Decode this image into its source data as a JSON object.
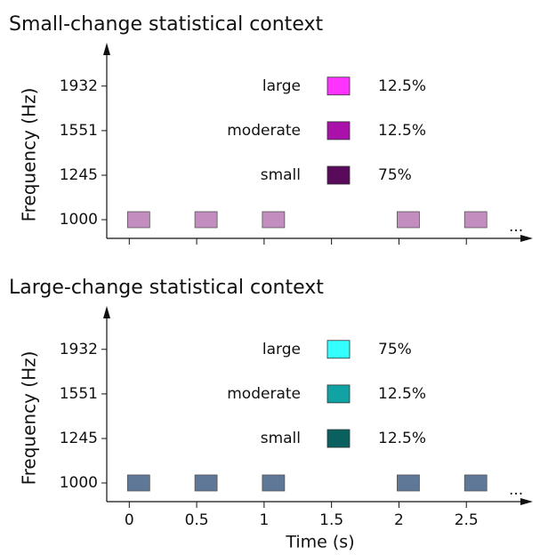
{
  "chart_data": [
    {
      "type": "scatter",
      "title": "Small-change statistical context",
      "ylabel": "Frequency (Hz)",
      "yscale": "log",
      "ylim": [
        912,
        2270
      ],
      "yticks": [
        1000,
        1245,
        1551,
        1932
      ],
      "xlim": [
        -0.167,
        2.967
      ],
      "xticks": [
        0,
        0.5,
        1,
        1.5,
        2,
        2.5
      ],
      "xtick_labels_shown": false,
      "x": [
        0,
        0.5,
        1,
        2,
        2.5
      ],
      "values": [
        1000,
        1000,
        1000,
        1000,
        1000
      ],
      "color": "#c48dbf",
      "annotation": "...",
      "series": [
        {
          "name": "large",
          "color": "#ff33ff",
          "values": [
            12.5
          ],
          "value_labels": [
            "12.5%"
          ]
        },
        {
          "name": "moderate",
          "color": "#aa10aa",
          "values": [
            12.5
          ],
          "value_labels": [
            "12.5%"
          ]
        },
        {
          "name": "small",
          "color": "#5a0a5a",
          "values": [
            75
          ],
          "value_labels": [
            "75%"
          ]
        }
      ]
    },
    {
      "type": "scatter",
      "title": "Large-change statistical context",
      "ylabel": "Frequency (Hz)",
      "xlabel": "Time (s)",
      "yscale": "log",
      "ylim": [
        912,
        2270
      ],
      "yticks": [
        1000,
        1245,
        1551,
        1932
      ],
      "xlim": [
        -0.167,
        2.967
      ],
      "xticks": [
        0,
        0.5,
        1,
        1.5,
        2,
        2.5
      ],
      "xtick_labels_shown": true,
      "x": [
        0,
        0.5,
        1,
        2,
        2.5
      ],
      "values": [
        1000,
        1000,
        1000,
        1000,
        1000
      ],
      "color": "#5f7898",
      "annotation": "...",
      "series": [
        {
          "name": "large",
          "color": "#33ffff",
          "values": [
            75
          ],
          "value_labels": [
            "75%"
          ]
        },
        {
          "name": "moderate",
          "color": "#11a3a3",
          "values": [
            12.5
          ],
          "value_labels": [
            "12.5%"
          ]
        },
        {
          "name": "small",
          "color": "#0a5f5f",
          "values": [
            12.5
          ],
          "value_labels": [
            "12.5%"
          ]
        }
      ]
    }
  ]
}
